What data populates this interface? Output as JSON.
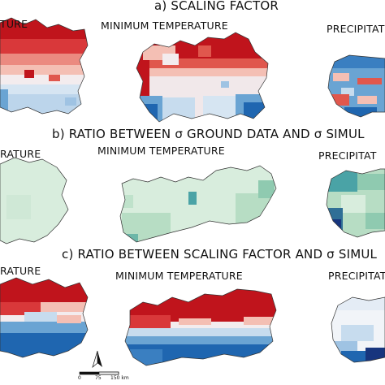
{
  "panels": {
    "a": {
      "title": "a) SCALING FACTOR",
      "left_label": "TURE",
      "mid_label": "MINIMUM TEMPERATURE",
      "right_label": "PRECIPITAT"
    },
    "b": {
      "title": "b) RATIO BETWEEN σ GROUND DATA AND σ SIMUL",
      "left_label": "RATURE",
      "mid_label": "MINIMUM TEMPERATURE",
      "right_label": "PRECIPITAT"
    },
    "c": {
      "title": "c) RATIO BETWEEN SCALING FACTOR AND σ SIMUL",
      "left_label": "RATURE",
      "mid_label": "MINIMUM TEMPERATURE",
      "right_label": "PRECIPITAT"
    }
  },
  "scalebar": {
    "tick0": "0",
    "tick1": "75",
    "tick2": "150 km"
  },
  "north_arrow": "north-arrow-icon",
  "colors": {
    "red_dark": "#c0141c",
    "red_mid": "#e0574d",
    "red_light": "#f4bfb4",
    "neutral": "#f3ecee",
    "blue_light": "#c7dcee",
    "blue_mid": "#6aa4d3",
    "blue_dark": "#1f66b0",
    "green_light": "#d8eddd",
    "green_mid": "#b7ddc4",
    "teal": "#4aa3a6",
    "navy": "#17357e"
  }
}
